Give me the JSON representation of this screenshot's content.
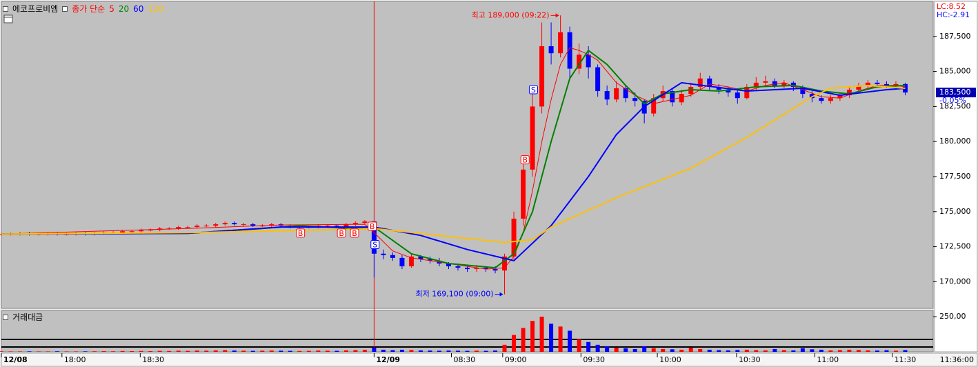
{
  "chart_data": {
    "type": "candlestick",
    "title": "에코프로비엠",
    "legend_label": "종가 단순",
    "lc_label": "LC:8.52",
    "hc_label": "HC:-2.91",
    "time_label": "11:36:00",
    "up_color": "#ff0000",
    "down_color": "#0000ff",
    "x": [
      0,
      1,
      2,
      3,
      4,
      5,
      6,
      7,
      8,
      9,
      10,
      11,
      12,
      13,
      14,
      15,
      16,
      17,
      18,
      19,
      20,
      21,
      22,
      23,
      24,
      25,
      26,
      27,
      28,
      29,
      30,
      31,
      32,
      33,
      34,
      35,
      36,
      37,
      38,
      39,
      40,
      41,
      42,
      43,
      44,
      45,
      46,
      47,
      48,
      49,
      50,
      51,
      52,
      53,
      54,
      55,
      56,
      57,
      58,
      59,
      60,
      61,
      62,
      63,
      64,
      65,
      66,
      67,
      68,
      69,
      70,
      71,
      72,
      73,
      74,
      75,
      76,
      77,
      78,
      79,
      80,
      81,
      82,
      83,
      84,
      85,
      86,
      87,
      88,
      89,
      90,
      91,
      92,
      93,
      94,
      95,
      96,
      97
    ],
    "open": [
      173400,
      173400,
      173400,
      173450,
      173400,
      173400,
      173450,
      173400,
      173400,
      173450,
      173400,
      173450,
      173500,
      173500,
      173600,
      173600,
      173700,
      173700,
      173800,
      173800,
      173900,
      173900,
      174000,
      174000,
      174100,
      174200,
      174100,
      174100,
      174000,
      174000,
      174100,
      174000,
      173900,
      173900,
      173900,
      174000,
      174000,
      173900,
      174100,
      174200,
      174300,
      172000,
      171900,
      171700,
      171100,
      171800,
      171600,
      171500,
      171300,
      171100,
      171000,
      170900,
      171000,
      170900,
      170800,
      171800,
      174500,
      178000,
      182500,
      186800,
      186300,
      187800,
      185200,
      186200,
      185300,
      183600,
      183000,
      183800,
      183100,
      182900,
      182000,
      183100,
      183600,
      182800,
      183400,
      183900,
      184500,
      183900,
      183700,
      183500,
      183100,
      183900,
      184200,
      184300,
      184000,
      184200,
      183900,
      183400,
      183100,
      182900,
      183100,
      183300,
      183700,
      184000,
      184200,
      184100,
      184000,
      184100
    ],
    "high": [
      173500,
      173500,
      173550,
      173550,
      173500,
      173550,
      173550,
      173500,
      173550,
      173550,
      173550,
      173600,
      173600,
      173700,
      173700,
      173800,
      173800,
      173900,
      173900,
      174000,
      174000,
      174100,
      174100,
      174200,
      174300,
      174300,
      174200,
      174200,
      174100,
      174200,
      174200,
      174100,
      174000,
      174000,
      174100,
      174100,
      174100,
      174200,
      174300,
      174400,
      174300,
      172300,
      172100,
      171900,
      172000,
      171900,
      171800,
      171700,
      171400,
      171300,
      171200,
      171200,
      171100,
      171100,
      172000,
      175000,
      179000,
      183500,
      188500,
      188500,
      189000,
      188200,
      187000,
      186800,
      185500,
      184000,
      184300,
      184000,
      183500,
      183000,
      183400,
      184000,
      183800,
      183700,
      184200,
      184900,
      184700,
      184100,
      183900,
      183700,
      184100,
      184600,
      184700,
      184500,
      184400,
      184300,
      184000,
      183600,
      183300,
      183300,
      183500,
      183900,
      184200,
      184400,
      184400,
      184300,
      184300,
      184200
    ],
    "low": [
      173300,
      173300,
      173300,
      173300,
      173300,
      173300,
      173300,
      173300,
      173300,
      173300,
      173300,
      173350,
      173400,
      173400,
      173500,
      173500,
      173600,
      173600,
      173700,
      173700,
      173800,
      173800,
      173900,
      173900,
      174000,
      174000,
      174000,
      173900,
      173900,
      173900,
      173900,
      173800,
      173800,
      173800,
      173800,
      173900,
      173800,
      173800,
      174000,
      174100,
      170300,
      171600,
      171500,
      170900,
      171000,
      171400,
      171300,
      171100,
      170900,
      170800,
      170700,
      170700,
      170700,
      170600,
      169100,
      171600,
      174000,
      177500,
      182000,
      185500,
      186000,
      184500,
      184800,
      184500,
      183200,
      182600,
      182800,
      182800,
      182500,
      181300,
      181800,
      182900,
      182500,
      182600,
      183200,
      183700,
      183600,
      183400,
      183200,
      182700,
      183000,
      183700,
      184000,
      183800,
      183800,
      183600,
      183100,
      182800,
      182700,
      182700,
      182900,
      183100,
      183500,
      183800,
      183900,
      183800,
      183800,
      183300
    ],
    "close": [
      173400,
      173400,
      173450,
      173400,
      173400,
      173450,
      173400,
      173400,
      173450,
      173400,
      173450,
      173500,
      173500,
      173600,
      173600,
      173700,
      173700,
      173800,
      173800,
      173900,
      173900,
      174000,
      174000,
      174100,
      174200,
      174100,
      174100,
      174000,
      174000,
      174100,
      174000,
      173900,
      173900,
      173900,
      174000,
      174000,
      173900,
      174100,
      174200,
      174300,
      172000,
      171900,
      171700,
      171100,
      171800,
      171600,
      171500,
      171300,
      171100,
      171000,
      170900,
      171000,
      170900,
      170800,
      171800,
      174500,
      178000,
      182500,
      186800,
      186300,
      187800,
      185200,
      186200,
      185300,
      183600,
      183000,
      183800,
      183100,
      182900,
      182000,
      183100,
      183600,
      182800,
      183400,
      183900,
      184500,
      183900,
      183700,
      183500,
      183100,
      183900,
      184200,
      184300,
      184000,
      184200,
      183900,
      183400,
      183100,
      182900,
      183100,
      183300,
      183700,
      184000,
      184200,
      184100,
      184000,
      184100,
      183500
    ],
    "moving_averages": [
      {
        "name": "5",
        "color": "#ff0000",
        "x": [
          0,
          20,
          30,
          39,
          40,
          42,
          44,
          48,
          52,
          54,
          55,
          56,
          57,
          58,
          59,
          60,
          61,
          62,
          63,
          64,
          66,
          68,
          70,
          72,
          74,
          76,
          78,
          80,
          82,
          84,
          86,
          88,
          90,
          92,
          94,
          96,
          97
        ],
        "values": [
          173400,
          173800,
          174050,
          174100,
          173500,
          172200,
          171700,
          171300,
          170900,
          171000,
          171800,
          173500,
          176500,
          180000,
          183000,
          185500,
          186700,
          186500,
          186200,
          185800,
          184200,
          183300,
          182700,
          183000,
          183300,
          184100,
          183900,
          183600,
          184000,
          184200,
          183700,
          183200,
          183100,
          183600,
          184000,
          184000,
          183900
        ]
      },
      {
        "name": "20",
        "color": "#008000",
        "x": [
          0,
          20,
          28,
          32,
          38,
          40,
          44,
          48,
          53,
          55,
          57,
          59,
          61,
          63,
          65,
          67,
          69,
          71,
          74,
          77,
          81,
          85,
          88,
          91,
          94,
          97
        ],
        "values": [
          173400,
          173450,
          173800,
          174000,
          173800,
          173900,
          172000,
          171300,
          171000,
          172000,
          175000,
          180000,
          184500,
          186500,
          185500,
          184000,
          182700,
          183400,
          183700,
          183600,
          183900,
          184000,
          183600,
          183400,
          183900,
          184000
        ]
      },
      {
        "name": "60",
        "color": "#0000ff",
        "x": [
          0,
          20,
          30,
          40,
          45,
          50,
          55,
          59,
          63,
          66,
          69,
          73,
          80,
          86,
          90,
          95,
          97
        ],
        "values": [
          173400,
          173450,
          173900,
          173900,
          173300,
          172300,
          171500,
          174000,
          177500,
          180500,
          182500,
          184200,
          183600,
          183800,
          183300,
          183700,
          183800
        ]
      },
      {
        "name": "120",
        "color": "#ffc000",
        "x": [
          0,
          20,
          35,
          40,
          54,
          57,
          59,
          66,
          74,
          80,
          87,
          89,
          93,
          97
        ],
        "values": [
          173400,
          173500,
          173700,
          173800,
          172800,
          173000,
          173900,
          176000,
          178100,
          180300,
          183200,
          183800,
          184000,
          183800
        ]
      }
    ],
    "xlim": [
      0,
      100
    ],
    "xticks": [
      {
        "value": 0,
        "label": "12/08"
      },
      {
        "value": 6.5,
        "label": "18:00"
      },
      {
        "value": 14.9,
        "label": "18:30"
      },
      {
        "value": 40,
        "label": "12/09"
      },
      {
        "value": 48.3,
        "label": "08:30"
      },
      {
        "value": 53.8,
        "label": "09:00"
      },
      {
        "value": 62.2,
        "label": "09:30"
      },
      {
        "value": 70.4,
        "label": "10:00"
      },
      {
        "value": 78.9,
        "label": "10:30"
      },
      {
        "value": 87.3,
        "label": "11:00"
      },
      {
        "value": 95.6,
        "label": "11:30"
      }
    ],
    "ylim": [
      168100,
      190000
    ],
    "yticks": [
      {
        "value": 170000,
        "label": "170,000"
      },
      {
        "value": 172500,
        "label": "172,500"
      },
      {
        "value": 175000,
        "label": "175,000"
      },
      {
        "value": 177500,
        "label": "177,500"
      },
      {
        "value": 180000,
        "label": "180,000"
      },
      {
        "value": 182500,
        "label": "182,500"
      },
      {
        "value": 185000,
        "label": "185,000"
      },
      {
        "value": 187500,
        "label": "187,500"
      }
    ],
    "annotations": [
      {
        "text": "최고 189,000 (09:22)",
        "x": 60,
        "y": 189000,
        "color": "#ff0000"
      },
      {
        "text": "최저 169,100 (09:00)",
        "x": 54,
        "y": 169100,
        "color": "#0000ff"
      }
    ],
    "signals": [
      {
        "x": 32.1,
        "y": 173470,
        "label": "B"
      },
      {
        "x": 36.5,
        "y": 173470,
        "label": "B"
      },
      {
        "x": 37.9,
        "y": 173470,
        "label": "B"
      },
      {
        "x": 39.8,
        "y": 173960,
        "label": "B"
      },
      {
        "x": 40.1,
        "y": 172650,
        "label": "S"
      },
      {
        "x": 56.2,
        "y": 178700,
        "label": "B"
      },
      {
        "x": 57.1,
        "y": 183700,
        "label": "S"
      }
    ],
    "last_price": {
      "value": 183500,
      "label": "183,500"
    },
    "change": "-0.05%",
    "volume": {
      "title": "거래대금",
      "values": [
        400,
        300,
        300,
        350,
        300,
        300,
        400,
        300,
        300,
        350,
        400,
        500,
        400,
        600,
        500,
        600,
        500,
        700,
        600,
        800,
        700,
        900,
        800,
        1000,
        1200,
        900,
        800,
        700,
        800,
        900,
        800,
        700,
        600,
        700,
        900,
        800,
        700,
        1000,
        1200,
        1400,
        3000,
        1500,
        1200,
        1500,
        1300,
        1000,
        900,
        800,
        900,
        800,
        700,
        800,
        700,
        900,
        5000,
        12000,
        17000,
        22000,
        25000,
        20000,
        18000,
        15000,
        9000,
        7000,
        5000,
        4000,
        3000,
        2500,
        2000,
        4000,
        2500,
        2000,
        1800,
        1500,
        3000,
        2000,
        1500,
        1200,
        1000,
        1300,
        1500,
        1200,
        1000,
        2000,
        1200,
        1000,
        2500,
        1800,
        1500,
        1000,
        1200,
        1500,
        1300,
        1000,
        900,
        1100,
        800,
        1200
      ],
      "ylim": [
        0,
        27000
      ],
      "yticks": [
        {
          "value": 25000,
          "label": "250,00"
        }
      ]
    }
  }
}
